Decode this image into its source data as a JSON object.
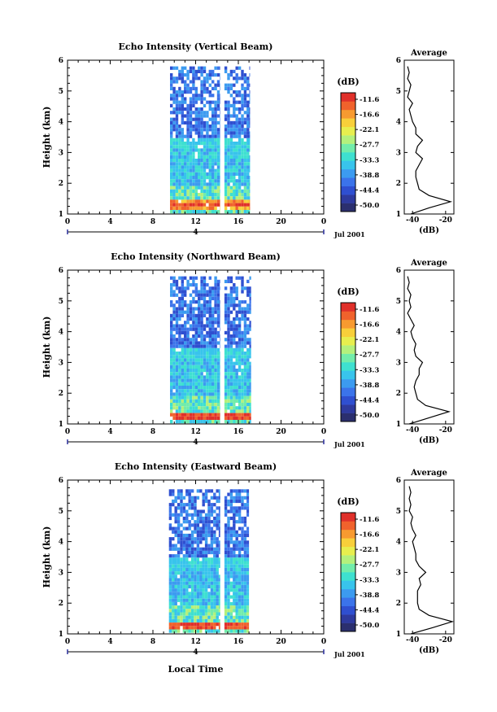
{
  "figure": {
    "xlabel": "Local Time",
    "date_label": "Jul 2001",
    "day_label": "4"
  },
  "colorbar": {
    "unit": "(dB)",
    "ticks": [
      "-11.6",
      "-16.6",
      "-22.1",
      "-27.7",
      "-33.3",
      "-38.8",
      "-44.4",
      "-50.0"
    ],
    "colors": [
      "#2b2f6e",
      "#2e3a9e",
      "#2f4fd0",
      "#3b73ea",
      "#3c9bf0",
      "#38c4ec",
      "#3ee0d0",
      "#72ecaa",
      "#b4f07c",
      "#e8ee4e",
      "#f8cf3a",
      "#f79a30",
      "#f0622c",
      "#e0302a"
    ]
  },
  "chart_data": [
    {
      "type": "heatmap",
      "title": "Echo Intensity (Vertical Beam)",
      "ylabel": "Height (km)",
      "xlim": [
        0,
        24
      ],
      "ylim": [
        1,
        6
      ],
      "xticks": [
        "0",
        "4",
        "8",
        "12",
        "16",
        "20",
        "0"
      ],
      "xtick_values": [
        0,
        4,
        8,
        12,
        16,
        20,
        24
      ],
      "yticks": [
        "1",
        "2",
        "3",
        "4",
        "5",
        "6"
      ],
      "data_blocks": [
        [
          9.6,
          14.3
        ],
        [
          14.7,
          17.1
        ]
      ],
      "top_height_km": [
        5.8,
        5.8
      ],
      "band_height_km": 1.35,
      "profile": {
        "title": "Average",
        "xlabel": "(dB)",
        "xticks": [
          "-40",
          "-20"
        ],
        "xlim": [
          -45,
          -15
        ],
        "heights": [
          1.0,
          1.2,
          1.4,
          1.6,
          1.8,
          2.0,
          2.2,
          2.4,
          2.6,
          2.8,
          3.0,
          3.2,
          3.4,
          3.6,
          3.8,
          4.0,
          4.2,
          4.4,
          4.6,
          4.8,
          5.0,
          5.2,
          5.4,
          5.6,
          5.8
        ],
        "values": [
          -41,
          -30,
          -17,
          -30,
          -36,
          -37,
          -38,
          -38,
          -36,
          -34,
          -38,
          -37,
          -34,
          -38,
          -38,
          -40,
          -41,
          -42,
          -40,
          -43,
          -42,
          -41,
          -43,
          -42,
          -43
        ]
      }
    },
    {
      "type": "heatmap",
      "title": "Echo Intensity (Northward Beam)",
      "ylabel": "Height (km)",
      "xlim": [
        0,
        24
      ],
      "ylim": [
        1,
        6
      ],
      "xticks": [
        "0",
        "4",
        "8",
        "12",
        "16",
        "20",
        "0"
      ],
      "xtick_values": [
        0,
        4,
        8,
        12,
        16,
        20,
        24
      ],
      "yticks": [
        "1",
        "2",
        "3",
        "4",
        "5",
        "6"
      ],
      "data_blocks": [
        [
          9.6,
          14.3
        ],
        [
          14.7,
          17.2
        ]
      ],
      "top_height_km": [
        5.8,
        5.8
      ],
      "band_height_km": 1.3,
      "profile": {
        "title": "Average",
        "xlabel": "(dB)",
        "xticks": [
          "-40",
          "-20"
        ],
        "xlim": [
          -45,
          -15
        ],
        "heights": [
          1.0,
          1.2,
          1.4,
          1.6,
          1.8,
          2.0,
          2.2,
          2.4,
          2.6,
          2.8,
          3.0,
          3.2,
          3.4,
          3.6,
          3.8,
          4.0,
          4.2,
          4.4,
          4.6,
          4.8,
          5.0,
          5.2,
          5.4,
          5.6,
          5.8
        ],
        "values": [
          -42,
          -30,
          -18,
          -32,
          -37,
          -38,
          -39,
          -38,
          -36,
          -36,
          -34,
          -38,
          -39,
          -38,
          -40,
          -41,
          -39,
          -41,
          -43,
          -41,
          -42,
          -41,
          -43,
          -42,
          -43
        ]
      }
    },
    {
      "type": "heatmap",
      "title": "Echo Intensity (Eastward Beam)",
      "ylabel": "Height (km)",
      "xlim": [
        0,
        24
      ],
      "ylim": [
        1,
        6
      ],
      "xticks": [
        "0",
        "4",
        "8",
        "12",
        "16",
        "20",
        "0"
      ],
      "xtick_values": [
        0,
        4,
        8,
        12,
        16,
        20,
        24
      ],
      "yticks": [
        "1",
        "2",
        "3",
        "4",
        "5",
        "6"
      ],
      "data_blocks": [
        [
          9.5,
          14.3
        ],
        [
          14.7,
          17.0
        ]
      ],
      "top_height_km": [
        5.7,
        5.7
      ],
      "band_height_km": 1.3,
      "profile": {
        "title": "Average",
        "xlabel": "(dB)",
        "xticks": [
          "-40",
          "-20"
        ],
        "xlim": [
          -45,
          -15
        ],
        "heights": [
          1.0,
          1.2,
          1.4,
          1.6,
          1.8,
          2.0,
          2.2,
          2.4,
          2.6,
          2.8,
          3.0,
          3.2,
          3.4,
          3.6,
          3.8,
          4.0,
          4.2,
          4.4,
          4.6,
          4.8,
          5.0,
          5.2,
          5.4,
          5.6,
          5.8
        ],
        "values": [
          -41,
          -28,
          -16,
          -30,
          -36,
          -37,
          -37,
          -37,
          -35,
          -36,
          -32,
          -36,
          -38,
          -38,
          -39,
          -40,
          -38,
          -40,
          -41,
          -40,
          -42,
          -41,
          -42,
          -41,
          -42
        ]
      }
    }
  ]
}
